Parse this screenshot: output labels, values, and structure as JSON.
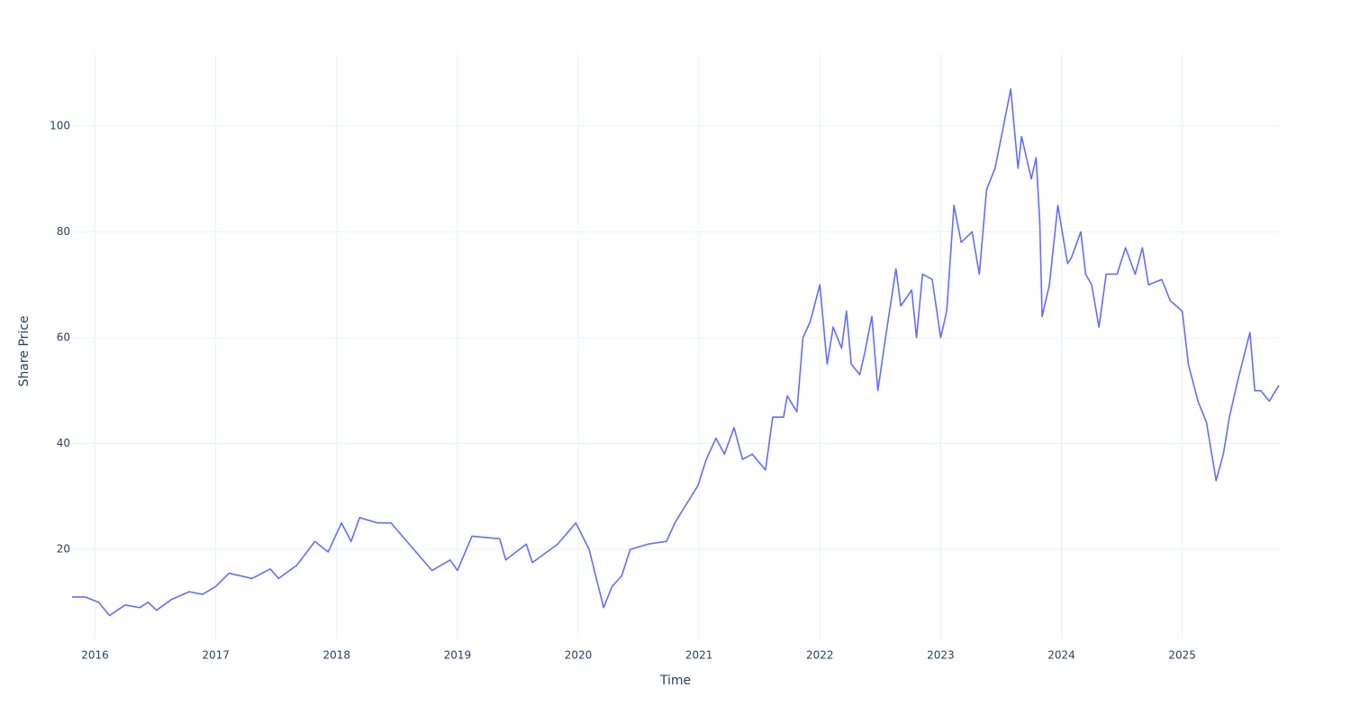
{
  "chart_data": {
    "type": "line",
    "x_label": "Time",
    "y_label": "Share Price",
    "x": [
      2015.81,
      2015.92,
      2016.03,
      2016.12,
      2016.25,
      2016.37,
      2016.44,
      2016.51,
      2016.63,
      2016.78,
      2016.89,
      2017.0,
      2017.11,
      2017.3,
      2017.45,
      2017.52,
      2017.67,
      2017.82,
      2017.93,
      2018.04,
      2018.12,
      2018.19,
      2018.34,
      2018.45,
      2018.79,
      2018.94,
      2019.0,
      2019.12,
      2019.35,
      2019.4,
      2019.57,
      2019.62,
      2019.83,
      2019.98,
      2020.09,
      2020.21,
      2020.28,
      2020.36,
      2020.43,
      2020.58,
      2020.73,
      2020.8,
      2020.88,
      2020.99,
      2021.06,
      2021.14,
      2021.21,
      2021.29,
      2021.36,
      2021.44,
      2021.55,
      2021.61,
      2021.7,
      2021.73,
      2021.81,
      2021.86,
      2021.92,
      2022.0,
      2022.06,
      2022.11,
      2022.18,
      2022.22,
      2022.26,
      2022.33,
      2022.37,
      2022.43,
      2022.48,
      2022.55,
      2022.63,
      2022.67,
      2022.76,
      2022.8,
      2022.85,
      2022.93,
      2023.0,
      2023.05,
      2023.11,
      2023.17,
      2023.26,
      2023.32,
      2023.38,
      2023.45,
      2023.52,
      2023.58,
      2023.64,
      2023.67,
      2023.75,
      2023.79,
      2023.82,
      2023.84,
      2023.9,
      2023.97,
      2024.05,
      2024.08,
      2024.16,
      2024.2,
      2024.25,
      2024.31,
      2024.37,
      2024.46,
      2024.53,
      2024.61,
      2024.67,
      2024.72,
      2024.83,
      2024.9,
      2025.0,
      2025.05,
      2025.13,
      2025.2,
      2025.28,
      2025.34,
      2025.39,
      2025.46,
      2025.56,
      2025.6,
      2025.65,
      2025.72,
      2025.8
    ],
    "series": [
      {
        "name": "Share Price",
        "color": "#636efa",
        "values": [
          11,
          11,
          10,
          7.5,
          9.5,
          9,
          10,
          8.5,
          10.5,
          12,
          11.5,
          13,
          15.5,
          14.5,
          16.3,
          14.5,
          17,
          21.5,
          19.5,
          25,
          21.5,
          26,
          25,
          25,
          16,
          18,
          16,
          22.5,
          22,
          18,
          21,
          17.5,
          21,
          25,
          20,
          9,
          13,
          15,
          20,
          21,
          21.5,
          25,
          28,
          32,
          37,
          41,
          38,
          43,
          37,
          38,
          35,
          45,
          45,
          49,
          46,
          60,
          63,
          70,
          55,
          62,
          58,
          65,
          55,
          53,
          57,
          64,
          50,
          61,
          73,
          66,
          69,
          60,
          72,
          71,
          60,
          65,
          85,
          78,
          80,
          72,
          88,
          92,
          100,
          107,
          92,
          98,
          90,
          94,
          82,
          64,
          70,
          85,
          74,
          75,
          80,
          72,
          70,
          62,
          72,
          72,
          77,
          72,
          77,
          70,
          71,
          67,
          65,
          55,
          48,
          44,
          33,
          38,
          45,
          52,
          61,
          50,
          50,
          48,
          51
        ]
      }
    ],
    "xlim": [
      2015.81,
      2025.8
    ],
    "xticks": [
      2016,
      2017,
      2018,
      2019,
      2020,
      2021,
      2022,
      2023,
      2024,
      2025
    ],
    "ylim": [
      3,
      113.6
    ],
    "yticks": [
      20,
      40,
      60,
      80,
      100
    ],
    "grid": true
  }
}
